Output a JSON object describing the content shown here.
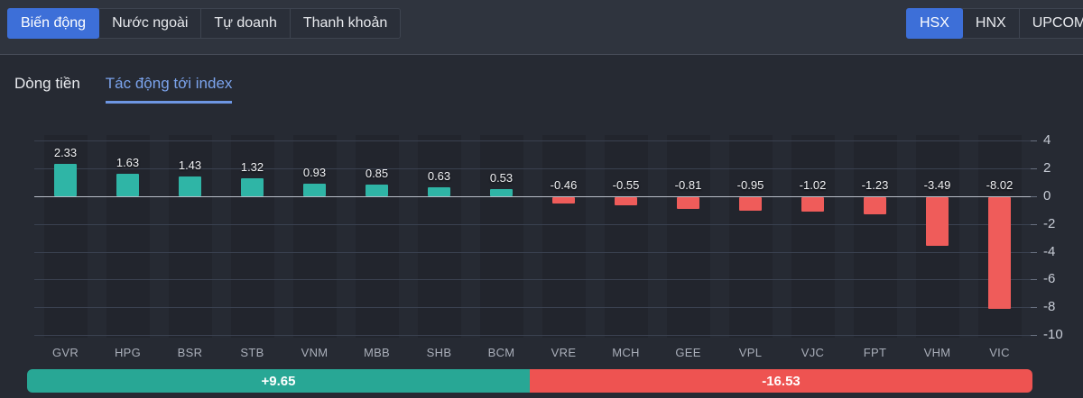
{
  "colors": {
    "accent_blue": "#3d6fd8",
    "positive_bar": "#2fb5a6",
    "negative_bar": "#ef5c5a",
    "total_positive_bg": "#28a795",
    "total_negative_bg": "#ee5351",
    "sub_tab_active": "#7ba3ec"
  },
  "top_tabs": {
    "items": [
      {
        "label": "Biến động",
        "active": true
      },
      {
        "label": "Nước ngoài",
        "active": false
      },
      {
        "label": "Tự doanh",
        "active": false
      },
      {
        "label": "Thanh khoản",
        "active": false
      }
    ]
  },
  "exchange_tabs": {
    "items": [
      {
        "label": "HSX",
        "active": true
      },
      {
        "label": "HNX",
        "active": false
      },
      {
        "label": "UPCOM",
        "active": false
      }
    ]
  },
  "sub_tabs": {
    "items": [
      {
        "label": "Dòng tiền",
        "active": false
      },
      {
        "label": "Tác động tới index",
        "active": true
      }
    ]
  },
  "chart_data": {
    "type": "bar",
    "title": "Tác động tới index",
    "categories": [
      "GVR",
      "HPG",
      "BSR",
      "STB",
      "VNM",
      "MBB",
      "SHB",
      "BCM",
      "VRE",
      "MCH",
      "GEE",
      "VPL",
      "VJC",
      "FPT",
      "VHM",
      "VIC"
    ],
    "values": [
      2.33,
      1.63,
      1.43,
      1.32,
      0.93,
      0.85,
      0.63,
      0.53,
      -0.46,
      -0.55,
      -0.81,
      -0.95,
      -1.02,
      -1.23,
      -3.49,
      -8.02
    ],
    "value_labels": [
      "2.33",
      "1.63",
      "1.43",
      "1.32",
      "0.93",
      "0.85",
      "0.63",
      "0.53",
      "-0.46",
      "-0.55",
      "-0.81",
      "-0.95",
      "-1.02",
      "-1.23",
      "-3.49",
      "-8.02"
    ],
    "xlabel": "",
    "ylabel": "",
    "ylim": [
      -10,
      4
    ],
    "yticks": [
      4,
      2,
      0,
      -2,
      -4,
      -6,
      -8,
      -10
    ],
    "grid": true,
    "legend_position": "none",
    "axis_side": "right"
  },
  "totals": {
    "positive_label": "+9.65",
    "negative_label": "-16.53"
  }
}
